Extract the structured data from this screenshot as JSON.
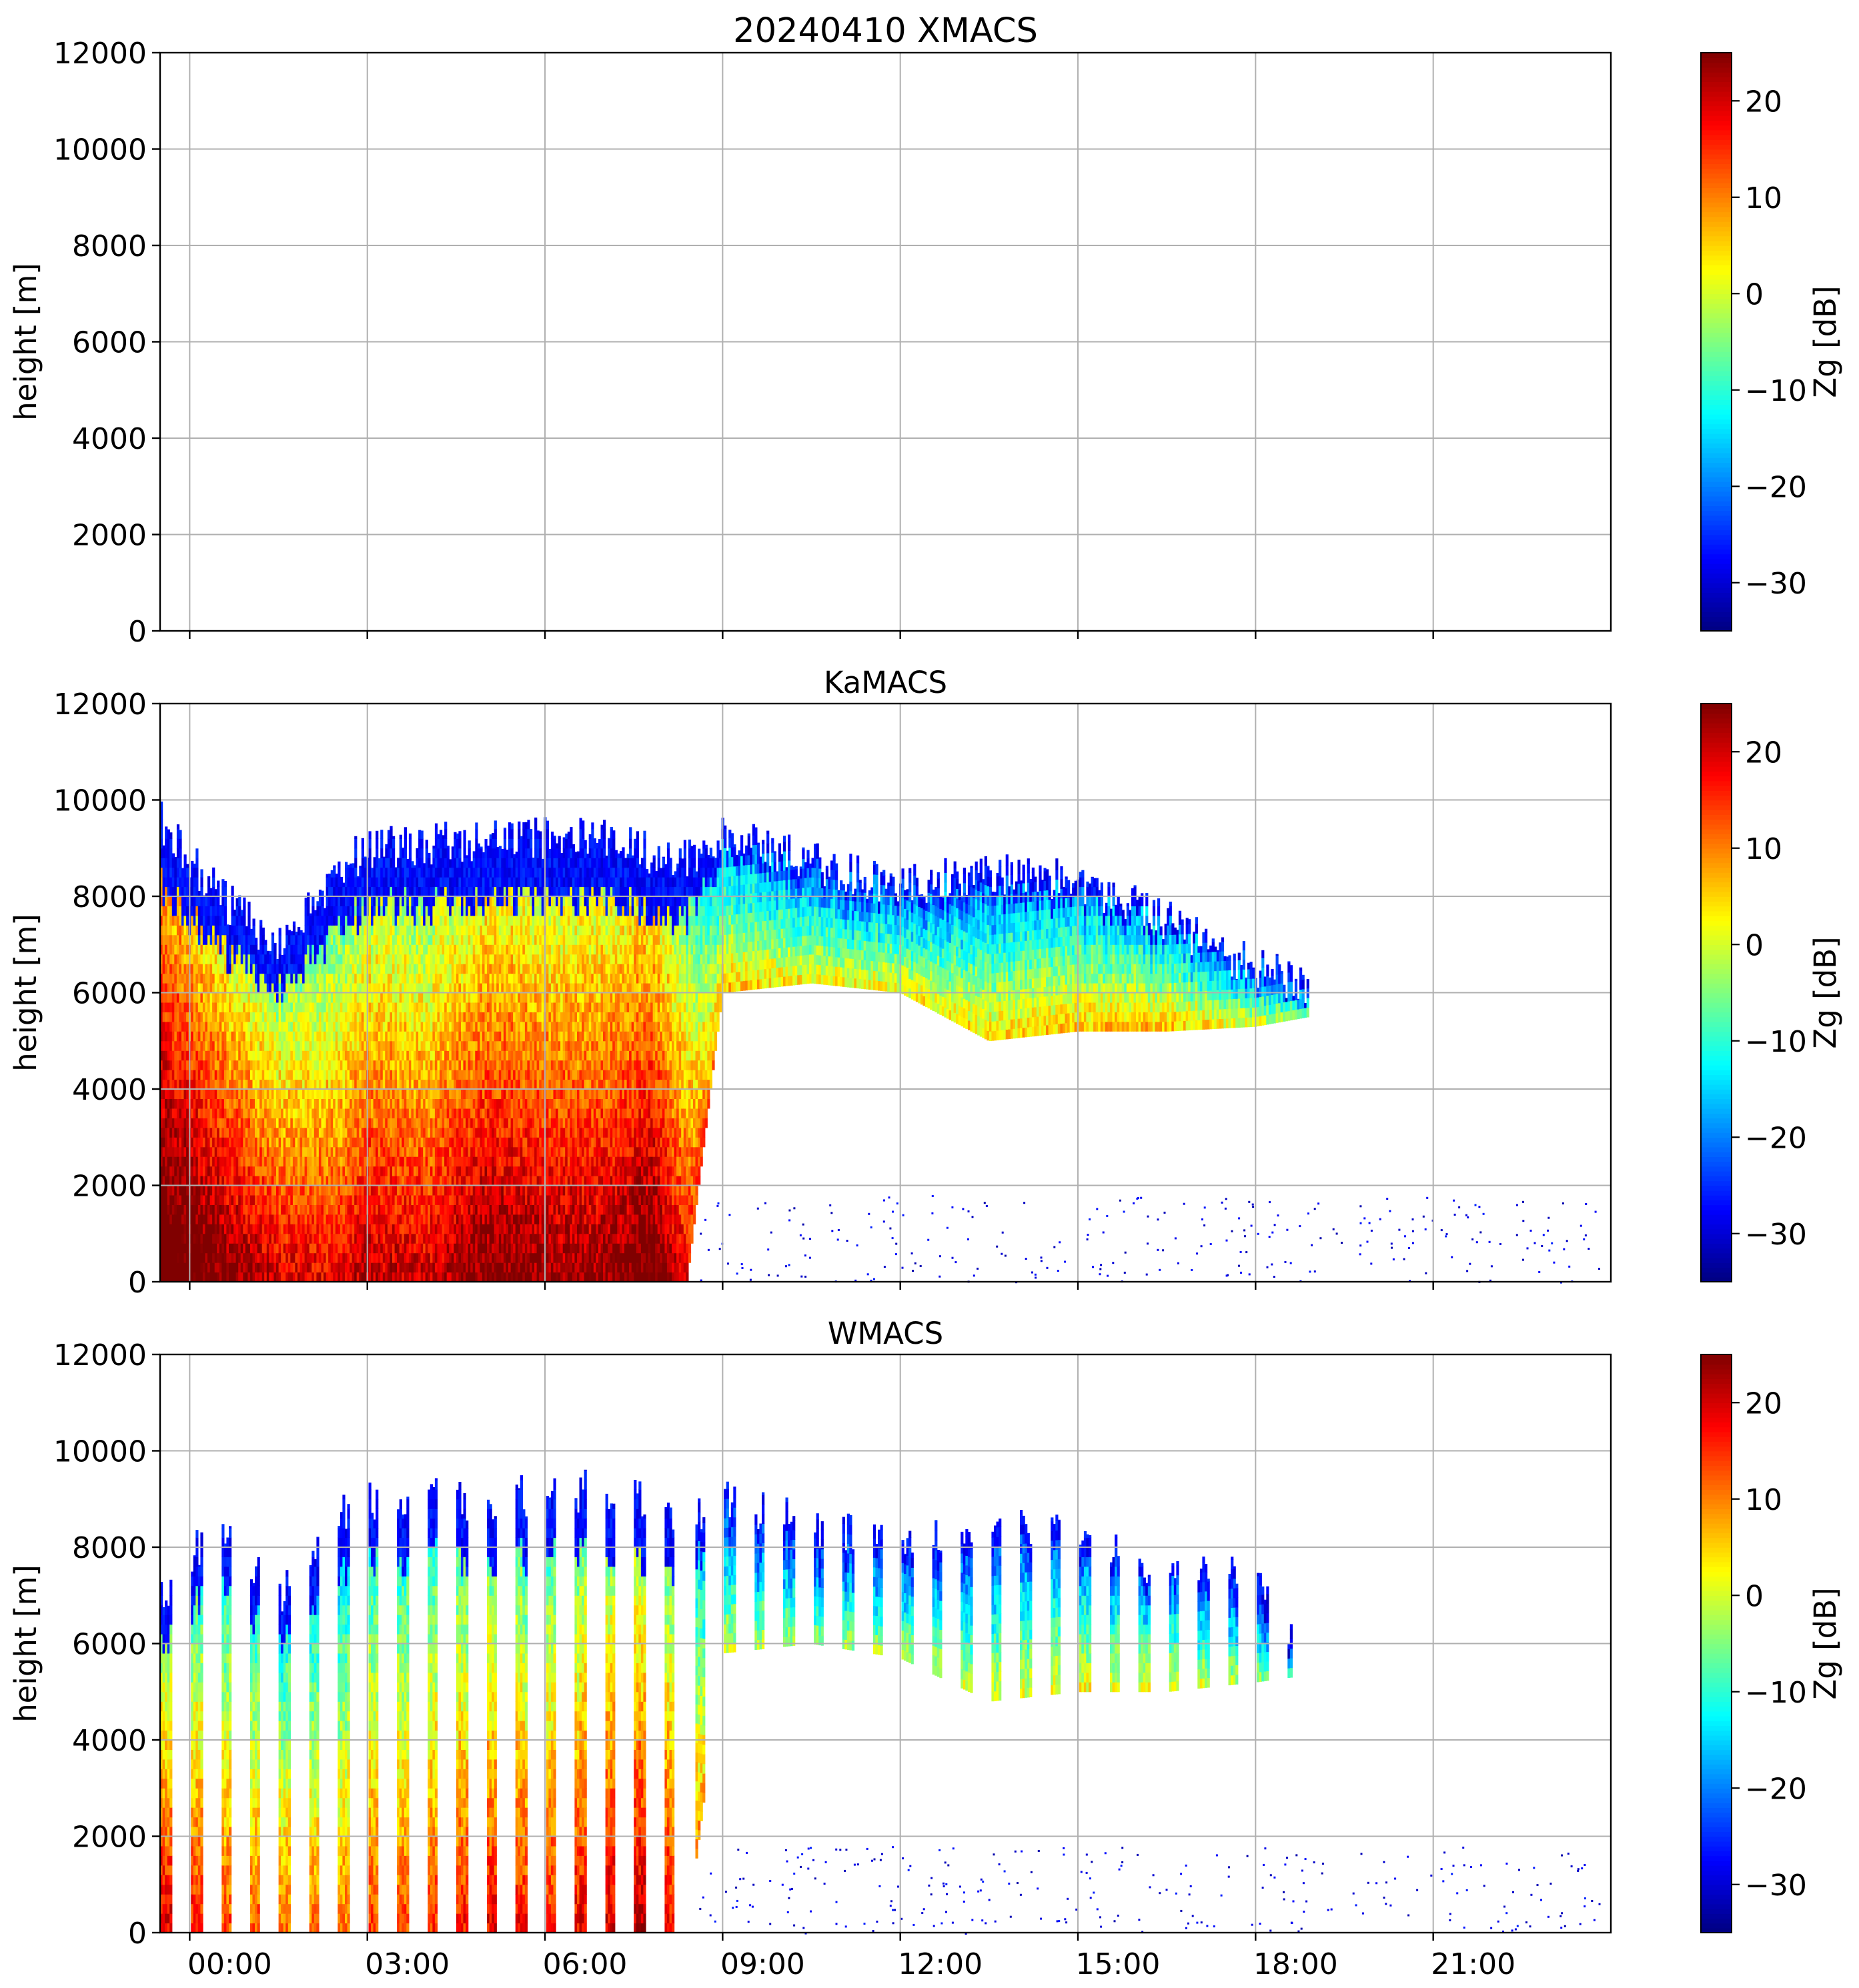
{
  "chart_data": [
    {
      "type": "heatmap",
      "title": "20240410 XMACS",
      "ylabel": "height [m]",
      "xlabel": "",
      "ylim": [
        0,
        12000
      ],
      "xlim_hours": [
        -0.5,
        24.0
      ],
      "yticks": [
        0,
        2000,
        4000,
        6000,
        8000,
        10000,
        12000
      ],
      "xtick_hours": [
        0,
        3,
        6,
        9,
        12,
        15,
        18,
        21
      ],
      "xtick_labels": [],
      "grid": true,
      "mode": "empty",
      "colorbar": {
        "label": "Zg [dB]",
        "min": -35,
        "max": 25,
        "ticks": [
          -30,
          -20,
          -10,
          0,
          10,
          20
        ],
        "cmap": "jet"
      }
    },
    {
      "type": "heatmap",
      "title": "KaMACS",
      "ylabel": "height [m]",
      "xlabel": "",
      "ylim": [
        0,
        12000
      ],
      "xlim_hours": [
        -0.5,
        24.0
      ],
      "yticks": [
        0,
        2000,
        4000,
        6000,
        8000,
        10000,
        12000
      ],
      "xtick_hours": [
        0,
        3,
        6,
        9,
        12,
        15,
        18,
        21
      ],
      "xtick_labels": [],
      "grid": true,
      "mode": "continuous",
      "cloud_profile": [
        {
          "t": -0.5,
          "base": 0,
          "top": 9600,
          "core_db": 18
        },
        {
          "t": 0.5,
          "base": 0,
          "top": 8000,
          "core_db": 12
        },
        {
          "t": 1.5,
          "base": 0,
          "top": 7000,
          "core_db": 6
        },
        {
          "t": 2.5,
          "base": 0,
          "top": 8500,
          "core_db": 4
        },
        {
          "t": 3.0,
          "base": 0,
          "top": 9000,
          "core_db": 8
        },
        {
          "t": 4.0,
          "base": 0,
          "top": 9100,
          "core_db": 6
        },
        {
          "t": 5.0,
          "base": 0,
          "top": 9200,
          "core_db": 12
        },
        {
          "t": 6.0,
          "base": 0,
          "top": 9200,
          "core_db": 10
        },
        {
          "t": 7.0,
          "base": 0,
          "top": 9200,
          "core_db": 10
        },
        {
          "t": 7.8,
          "base": 0,
          "top": 8900,
          "core_db": 14
        },
        {
          "t": 8.4,
          "base": 0,
          "top": 8800,
          "core_db": 4
        },
        {
          "t": 9.0,
          "base": 6000,
          "top": 9300,
          "core_db": -8
        },
        {
          "t": 10.5,
          "base": 6200,
          "top": 8700,
          "core_db": -12
        },
        {
          "t": 12.0,
          "base": 6000,
          "top": 8200,
          "core_db": -12
        },
        {
          "t": 13.5,
          "base": 5000,
          "top": 8500,
          "core_db": -10
        },
        {
          "t": 15.0,
          "base": 5200,
          "top": 8300,
          "core_db": -8
        },
        {
          "t": 16.5,
          "base": 5200,
          "top": 7500,
          "core_db": -8
        },
        {
          "t": 18.0,
          "base": 5300,
          "top": 6500,
          "core_db": -14
        },
        {
          "t": 18.9,
          "base": 5500,
          "top": 6200,
          "core_db": -22
        }
      ],
      "colorbar": {
        "label": "Zg [dB]",
        "min": -35,
        "max": 25,
        "ticks": [
          -30,
          -20,
          -10,
          0,
          10,
          20
        ],
        "cmap": "jet"
      }
    },
    {
      "type": "heatmap",
      "title": "WMACS",
      "ylabel": "height [m]",
      "xlabel": "",
      "ylim": [
        0,
        12000
      ],
      "xlim_hours": [
        -0.5,
        24.0
      ],
      "yticks": [
        0,
        2000,
        4000,
        6000,
        8000,
        10000,
        12000
      ],
      "xtick_hours": [
        0,
        3,
        6,
        9,
        12,
        15,
        18,
        21
      ],
      "xtick_labels": [
        "00:00",
        "03:00",
        "06:00",
        "09:00",
        "12:00",
        "15:00",
        "18:00",
        "21:00"
      ],
      "grid": true,
      "mode": "striped",
      "stripe_period_hours": 0.5,
      "stripe_width_hours": 0.18,
      "cloud_profile": [
        {
          "t": -0.5,
          "base": 0,
          "top": 6800,
          "core_db": 6
        },
        {
          "t": 0.5,
          "base": 0,
          "top": 8600,
          "core_db": 0
        },
        {
          "t": 1.5,
          "base": 0,
          "top": 7000,
          "core_db": -2
        },
        {
          "t": 2.5,
          "base": 0,
          "top": 8600,
          "core_db": -4
        },
        {
          "t": 3.0,
          "base": 0,
          "top": 9000,
          "core_db": 0
        },
        {
          "t": 4.0,
          "base": 0,
          "top": 9000,
          "core_db": 0
        },
        {
          "t": 5.0,
          "base": 0,
          "top": 9000,
          "core_db": 4
        },
        {
          "t": 6.0,
          "base": 0,
          "top": 9100,
          "core_db": 2
        },
        {
          "t": 7.0,
          "base": 0,
          "top": 9200,
          "core_db": 6
        },
        {
          "t": 7.8,
          "base": 0,
          "top": 8900,
          "core_db": 8
        },
        {
          "t": 8.4,
          "base": 0,
          "top": 8600,
          "core_db": 0
        },
        {
          "t": 9.0,
          "base": 5800,
          "top": 9100,
          "core_db": -14
        },
        {
          "t": 10.5,
          "base": 6000,
          "top": 8400,
          "core_db": -18
        },
        {
          "t": 12.0,
          "base": 5700,
          "top": 8200,
          "core_db": -16
        },
        {
          "t": 13.5,
          "base": 4800,
          "top": 8400,
          "core_db": -14
        },
        {
          "t": 15.0,
          "base": 5000,
          "top": 8300,
          "core_db": -12
        },
        {
          "t": 16.5,
          "base": 5000,
          "top": 7500,
          "core_db": -12
        },
        {
          "t": 18.0,
          "base": 5200,
          "top": 7300,
          "core_db": -18
        },
        {
          "t": 18.6,
          "base": 5300,
          "top": 6000,
          "core_db": -26
        }
      ],
      "colorbar": {
        "label": "Zg [dB]",
        "min": -35,
        "max": 25,
        "ticks": [
          -30,
          -20,
          -10,
          0,
          10,
          20
        ],
        "cmap": "jet"
      }
    }
  ]
}
